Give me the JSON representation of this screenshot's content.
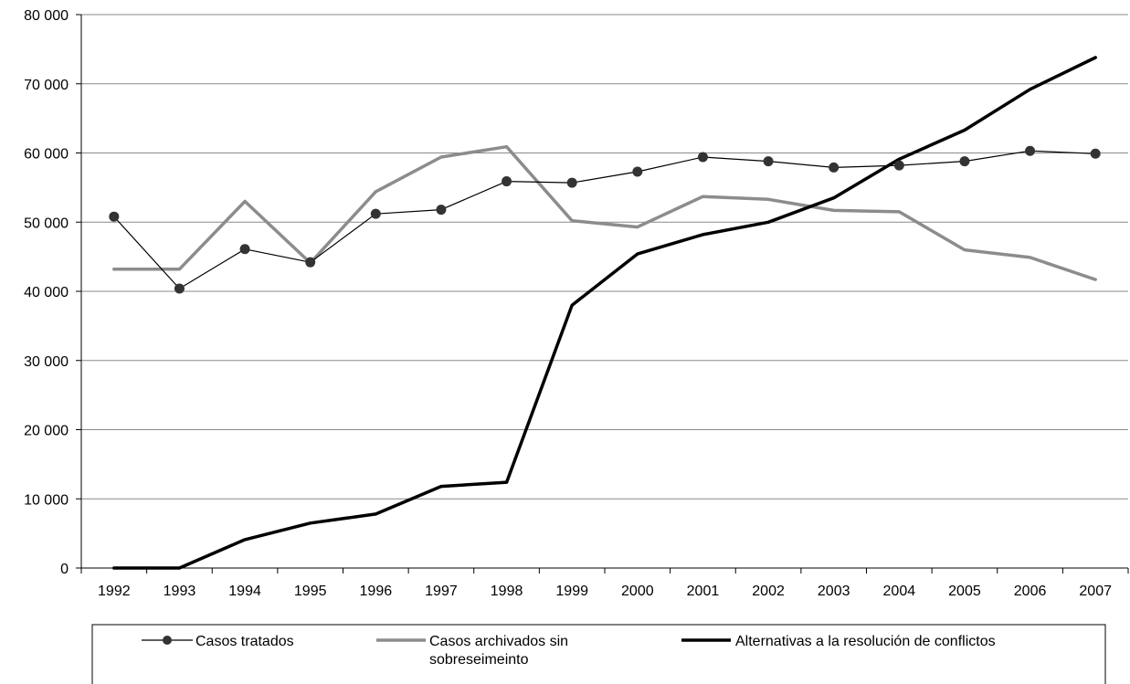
{
  "chart_data": {
    "type": "line",
    "title": "",
    "xlabel": "",
    "ylabel": "",
    "x": [
      "1992",
      "1993",
      "1994",
      "1995",
      "1996",
      "1997",
      "1998",
      "1999",
      "2000",
      "2001",
      "2002",
      "2003",
      "2004",
      "2005",
      "2006",
      "2007"
    ],
    "ylim": [
      0,
      80000
    ],
    "yticks": [
      0,
      10000,
      20000,
      30000,
      40000,
      50000,
      60000,
      70000,
      80000
    ],
    "ytick_labels": [
      "0",
      "10 000",
      "20 000",
      "30 000",
      "40 000",
      "50 000",
      "60 000",
      "70 000",
      "80 000"
    ],
    "grid": "horizontal",
    "legend_position": "bottom",
    "series": [
      {
        "name": "Casos tratados",
        "color": "#000000",
        "marker": "circle",
        "values": [
          50800,
          40400,
          46100,
          44200,
          51200,
          51800,
          55900,
          55700,
          57300,
          59400,
          58800,
          57900,
          58200,
          58800,
          60300,
          59900
        ]
      },
      {
        "name": "Casos archivados sin sobreseimeinto",
        "color": "#8c8c8c",
        "marker": "none",
        "values": [
          43200,
          43200,
          53000,
          44100,
          54400,
          59400,
          60900,
          50200,
          49300,
          53700,
          53300,
          51700,
          51500,
          46000,
          44900,
          41700
        ]
      },
      {
        "name": "Alternativas a la resolución de conflictos",
        "color": "#000000",
        "marker": "none",
        "values": [
          0,
          0,
          4100,
          6500,
          7800,
          11800,
          12400,
          38000,
          45400,
          48200,
          50000,
          53500,
          59100,
          63300,
          69200,
          73800
        ]
      }
    ]
  }
}
